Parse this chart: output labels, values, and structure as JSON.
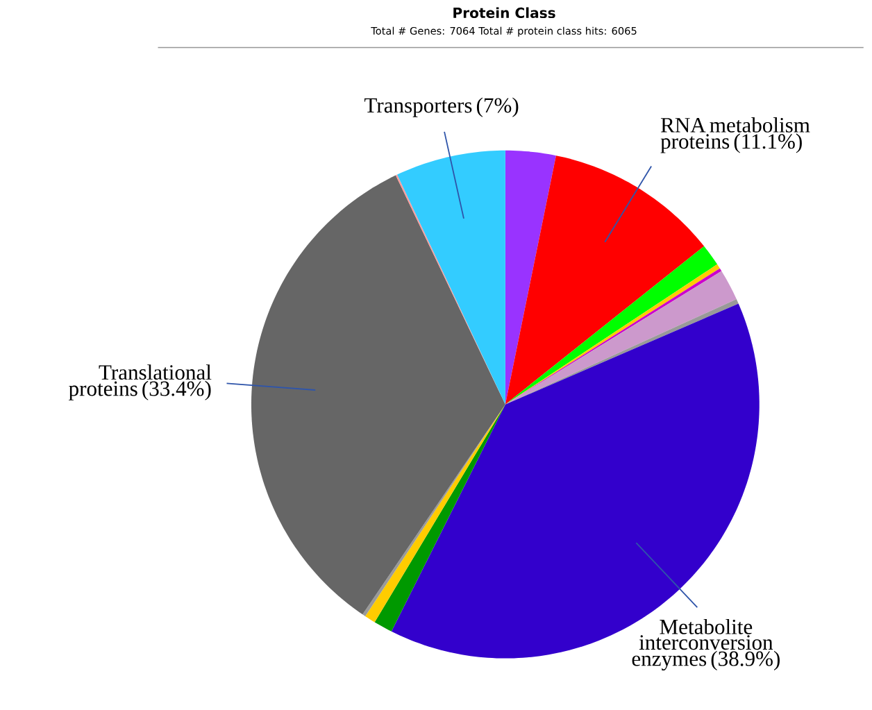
{
  "chart_data": {
    "type": "pie",
    "title": "Protein Class",
    "subtitle": "Total # Genes: 7064   Total # protein class hits: 6065",
    "categories": [
      null,
      "RNA metabolism proteins",
      null,
      null,
      null,
      null,
      null,
      "Metabolite interconversion enzymes",
      null,
      null,
      null,
      "Translational proteins",
      null,
      "Transporters"
    ],
    "values": [
      3.2,
      11.1,
      1.4,
      0.3,
      0.2,
      2.0,
      0.3,
      38.9,
      1.2,
      0.7,
      0.2,
      33.4,
      0.1,
      7
    ],
    "value_labels": [
      null,
      "(11.1%)",
      null,
      null,
      null,
      null,
      null,
      "(38.9%)",
      null,
      null,
      null,
      "(33.4%)",
      null,
      "(7%)"
    ],
    "colors": [
      "#9933ff",
      "#ff0000",
      "#00ff00",
      "#ffcc00",
      "#cc00cc",
      "#cc99cc",
      "#999999",
      "#3300cc",
      "#009900",
      "#ffcc00",
      "#999999",
      "#666666",
      "#ff9999",
      "#33ccff"
    ]
  }
}
